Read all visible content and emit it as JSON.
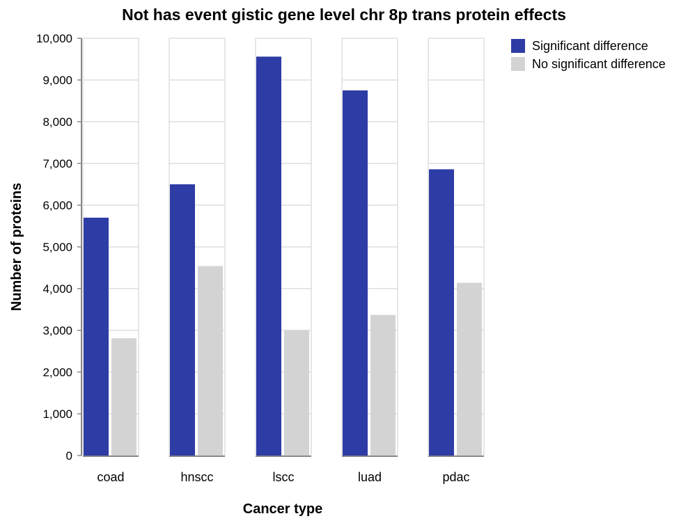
{
  "chart_data": {
    "type": "bar",
    "title": "Not has event gistic gene level chr 8p trans protein effects",
    "xlabel": "Cancer type",
    "ylabel": "Number of proteins",
    "ylim": [
      0,
      10000
    ],
    "yticks": [
      0,
      1000,
      2000,
      3000,
      4000,
      5000,
      6000,
      7000,
      8000,
      9000,
      10000
    ],
    "ytick_labels": [
      "0",
      "1,000",
      "2,000",
      "3,000",
      "4,000",
      "5,000",
      "6,000",
      "7,000",
      "8,000",
      "9,000",
      "10,000"
    ],
    "categories": [
      "coad",
      "hnscc",
      "lscc",
      "luad",
      "pdac"
    ],
    "series": [
      {
        "name": "Significant difference",
        "color": "#2e3ca5",
        "values": [
          5700,
          6500,
          9560,
          8750,
          6860
        ]
      },
      {
        "name": "No significant difference",
        "color": "#d3d3d3",
        "values": [
          2810,
          4540,
          3000,
          3370,
          4140
        ]
      }
    ],
    "grid": true,
    "legend_position": "top-right"
  }
}
